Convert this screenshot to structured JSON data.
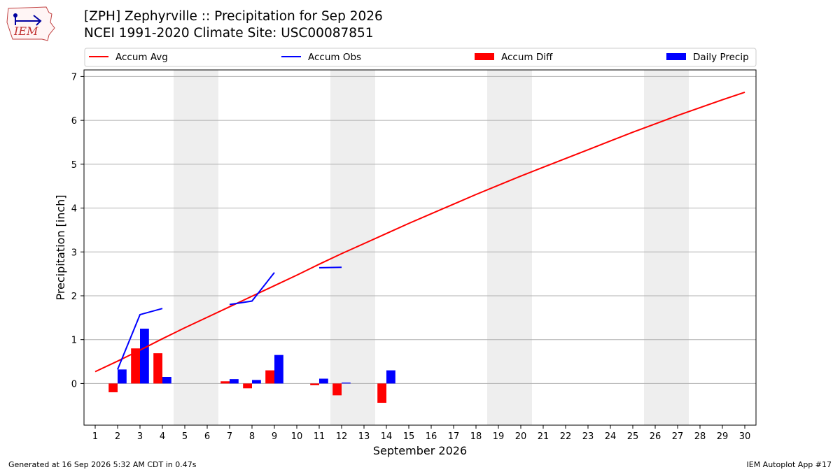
{
  "header": {
    "title_line1": "[ZPH] Zephyrville :: Precipitation for Sep 2026",
    "title_line2": "NCEI 1991-2020 Climate Site: USC00087851",
    "logo_text": "IEM"
  },
  "footer": {
    "generated": "Generated at 16 Sep 2026 5:32 AM CDT in 0.47s",
    "app": "IEM Autoplot App #17"
  },
  "colors": {
    "avg": "#ff0000",
    "obs": "#0000ff",
    "diff": "#ff0000",
    "daily": "#0000ff",
    "weekend": "#eeeeee",
    "grid": "#b0b0b0"
  },
  "chart_data": {
    "type": "bar",
    "xlabel": "September 2026",
    "ylabel": "Precipitation [inch]",
    "xlim": [
      0.5,
      30.5
    ],
    "ylim": [
      -0.95,
      7.15
    ],
    "x_ticks": [
      1,
      2,
      3,
      4,
      5,
      6,
      7,
      8,
      9,
      10,
      11,
      12,
      13,
      14,
      15,
      16,
      17,
      18,
      19,
      20,
      21,
      22,
      23,
      24,
      25,
      26,
      27,
      28,
      29,
      30
    ],
    "y_ticks": [
      0,
      1,
      2,
      3,
      4,
      5,
      6,
      7
    ],
    "grid": "horizontal",
    "legend_position": "top",
    "weekend_days": [
      5,
      6,
      12,
      13,
      19,
      20,
      26,
      27
    ],
    "legend": [
      {
        "label": "Accum Avg",
        "kind": "line",
        "color": "#ff0000"
      },
      {
        "label": "Accum Obs",
        "kind": "line",
        "color": "#0000ff"
      },
      {
        "label": "Accum Diff",
        "kind": "bar",
        "color": "#ff0000"
      },
      {
        "label": "Daily Precip",
        "kind": "bar",
        "color": "#0000ff"
      }
    ],
    "accum_avg": {
      "days": [
        1,
        2,
        3,
        4,
        5,
        6,
        7,
        8,
        9,
        10,
        11,
        12,
        13,
        14,
        15,
        16,
        17,
        18,
        19,
        20,
        21,
        22,
        23,
        24,
        25,
        26,
        27,
        28,
        29,
        30
      ],
      "values": [
        0.27,
        0.51,
        0.76,
        1.02,
        1.27,
        1.51,
        1.75,
        1.99,
        2.23,
        2.47,
        2.72,
        2.96,
        3.19,
        3.42,
        3.65,
        3.87,
        4.09,
        4.31,
        4.52,
        4.73,
        4.93,
        5.13,
        5.33,
        5.53,
        5.73,
        5.92,
        6.11,
        6.29,
        6.47,
        6.64
      ]
    },
    "accum_obs_segments": [
      {
        "days": [
          2,
          3,
          4
        ],
        "values": [
          0.32,
          1.57,
          1.71
        ]
      },
      {
        "days": [
          7,
          8,
          9
        ],
        "values": [
          1.8,
          1.88,
          2.53
        ]
      },
      {
        "days": [
          11,
          12
        ],
        "values": [
          2.64,
          2.65
        ]
      }
    ],
    "accum_diff": {
      "days": [
        2,
        3,
        4,
        7,
        8,
        9,
        11,
        12,
        14
      ],
      "values": [
        -0.2,
        0.8,
        0.69,
        0.05,
        -0.11,
        0.3,
        -0.04,
        -0.27,
        -0.44
      ]
    },
    "daily_precip": {
      "days": [
        2,
        3,
        4,
        7,
        8,
        9,
        11,
        12,
        14
      ],
      "values": [
        0.32,
        1.25,
        0.15,
        0.1,
        0.08,
        0.65,
        0.11,
        0.02,
        0.3
      ]
    }
  }
}
